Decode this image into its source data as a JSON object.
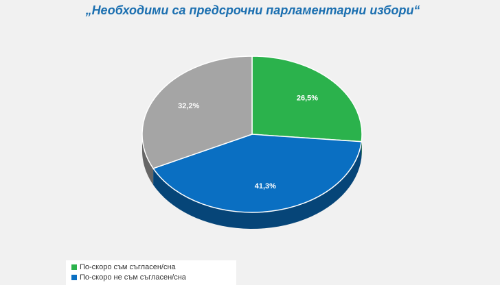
{
  "chart_data": {
    "type": "pie",
    "title": "„Необходими са предсрочни парламентарни избори“",
    "categories": [
      "По-скоро съм съгласен/сна",
      "По-скоро не съм съгласен/сна",
      null
    ],
    "values": [
      26.5,
      41.3,
      32.2
    ],
    "value_labels": [
      "26,5%",
      "41,3%",
      "32,2%"
    ],
    "colors": [
      "#2bb24c",
      "#0a6fc2",
      "#a5a5a5"
    ]
  }
}
